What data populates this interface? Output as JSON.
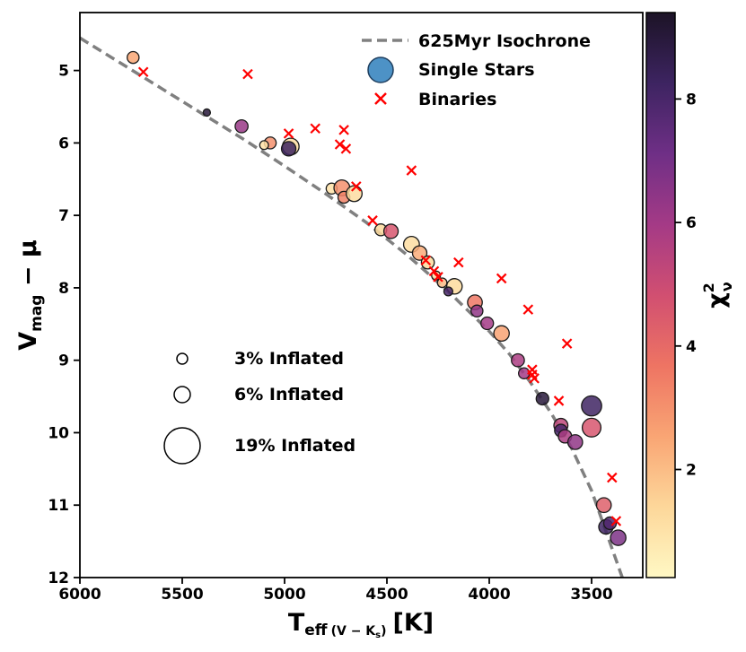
{
  "chart_data": {
    "type": "scatter",
    "xlabel": {
      "main": "T",
      "sub1": "eff",
      "sub2": "(V − K",
      "sub3": "s",
      "sub4": ")",
      "unit": "[K]"
    },
    "ylabel": {
      "main": "V",
      "sub": "mag",
      "rest": " − μ"
    },
    "xlim": [
      6000,
      3250
    ],
    "ylim": [
      12,
      4.2
    ],
    "x_ticks": [
      6000,
      5500,
      5000,
      4500,
      4000,
      3500
    ],
    "y_ticks": [
      5,
      6,
      7,
      8,
      9,
      10,
      11,
      12
    ],
    "colorbar": {
      "label": "χ",
      "label_sup": "2",
      "label_sub": "ν",
      "range": [
        0.25,
        9.4
      ],
      "ticks": [
        2,
        4,
        6,
        8
      ],
      "colormap": "magma_r-like",
      "colors": [
        "#fff8c4",
        "#fdd79a",
        "#f9a574",
        "#ee7463",
        "#d14f71",
        "#a43a86",
        "#6f2f86",
        "#3d2461",
        "#1c1326"
      ]
    },
    "legend": {
      "position": "top-right",
      "items": [
        {
          "label": "625Myr Isochrone",
          "kind": "dashed-line",
          "color": "#808080"
        },
        {
          "label": "Single Stars",
          "kind": "circle",
          "color": "#4d92c6"
        },
        {
          "label": "Binaries",
          "kind": "cross",
          "color": "#ff0000"
        }
      ]
    },
    "size_legend": [
      {
        "label": "3% Inflated",
        "inflation": 3
      },
      {
        "label": "6% Inflated",
        "inflation": 6
      },
      {
        "label": "19% Inflated",
        "inflation": 19
      }
    ],
    "isochrone": {
      "name": "625Myr Isochrone",
      "x": [
        6000,
        5800,
        5600,
        5400,
        5200,
        5000,
        4800,
        4600,
        4400,
        4200,
        4000,
        3900,
        3800,
        3700,
        3600,
        3500,
        3400,
        3350
      ],
      "y": [
        4.55,
        4.9,
        5.25,
        5.6,
        5.95,
        6.32,
        6.7,
        7.1,
        7.55,
        8.05,
        8.6,
        8.92,
        9.3,
        9.72,
        10.2,
        10.8,
        11.6,
        12.0
      ]
    },
    "single_stars": [
      {
        "teff": 5740,
        "v": 4.82,
        "chi2": 2.5,
        "inflation": 2.6
      },
      {
        "teff": 5380,
        "v": 5.58,
        "chi2": 9.0,
        "inflation": 0.5
      },
      {
        "teff": 5210,
        "v": 5.77,
        "chi2": 6.2,
        "inflation": 3.3
      },
      {
        "teff": 5070,
        "v": 6.0,
        "chi2": 3.0,
        "inflation": 2.6
      },
      {
        "teff": 5100,
        "v": 6.03,
        "chi2": 1.0,
        "inflation": 1.0
      },
      {
        "teff": 4970,
        "v": 6.05,
        "chi2": 1.2,
        "inflation": 6.5
      },
      {
        "teff": 4980,
        "v": 6.08,
        "chi2": 8.3,
        "inflation": 4.3
      },
      {
        "teff": 4770,
        "v": 6.63,
        "chi2": 1.0,
        "inflation": 2.0
      },
      {
        "teff": 4720,
        "v": 6.62,
        "chi2": 3.0,
        "inflation": 5.6
      },
      {
        "teff": 4710,
        "v": 6.75,
        "chi2": 3.3,
        "inflation": 2.6
      },
      {
        "teff": 4660,
        "v": 6.7,
        "chi2": 1.2,
        "inflation": 5.6
      },
      {
        "teff": 4530,
        "v": 7.2,
        "chi2": 1.3,
        "inflation": 2.5
      },
      {
        "teff": 4480,
        "v": 7.22,
        "chi2": 4.6,
        "inflation": 4.3
      },
      {
        "teff": 4380,
        "v": 7.4,
        "chi2": 1.2,
        "inflation": 5.6
      },
      {
        "teff": 4340,
        "v": 7.52,
        "chi2": 2.4,
        "inflation": 4.3
      },
      {
        "teff": 4300,
        "v": 7.65,
        "chi2": 1.3,
        "inflation": 3.3
      },
      {
        "teff": 4260,
        "v": 7.83,
        "chi2": 0.9,
        "inflation": 1.0
      },
      {
        "teff": 4230,
        "v": 7.93,
        "chi2": 2.0,
        "inflation": 1.3
      },
      {
        "teff": 4170,
        "v": 7.98,
        "chi2": 1.3,
        "inflation": 5.2
      },
      {
        "teff": 4200,
        "v": 8.05,
        "chi2": 8.0,
        "inflation": 1.0
      },
      {
        "teff": 4070,
        "v": 8.2,
        "chi2": 3.6,
        "inflation": 4.7
      },
      {
        "teff": 4060,
        "v": 8.32,
        "chi2": 6.4,
        "inflation": 2.6
      },
      {
        "teff": 4010,
        "v": 8.49,
        "chi2": 6.0,
        "inflation": 3.0
      },
      {
        "teff": 3940,
        "v": 8.63,
        "chi2": 2.6,
        "inflation": 5.2
      },
      {
        "teff": 3860,
        "v": 9.0,
        "chi2": 5.8,
        "inflation": 3.3
      },
      {
        "teff": 3830,
        "v": 9.18,
        "chi2": 6.0,
        "inflation": 2.0
      },
      {
        "teff": 3740,
        "v": 9.53,
        "chi2": 9.0,
        "inflation": 3.0
      },
      {
        "teff": 3650,
        "v": 9.9,
        "chi2": 5.3,
        "inflation": 4.0
      },
      {
        "teff": 3650,
        "v": 9.97,
        "chi2": 8.0,
        "inflation": 3.0
      },
      {
        "teff": 3630,
        "v": 10.05,
        "chi2": 5.8,
        "inflation": 3.5
      },
      {
        "teff": 3580,
        "v": 10.13,
        "chi2": 6.4,
        "inflation": 4.7
      },
      {
        "teff": 3500,
        "v": 9.63,
        "chi2": 8.2,
        "inflation": 10.2
      },
      {
        "teff": 3500,
        "v": 9.93,
        "chi2": 4.6,
        "inflation": 8.6
      },
      {
        "teff": 3440,
        "v": 11.0,
        "chi2": 4.3,
        "inflation": 4.7
      },
      {
        "teff": 3430,
        "v": 11.3,
        "chi2": 8.2,
        "inflation": 4.3
      },
      {
        "teff": 3410,
        "v": 11.25,
        "chi2": 7.8,
        "inflation": 3.0
      },
      {
        "teff": 3370,
        "v": 11.45,
        "chi2": 6.8,
        "inflation": 5.2
      }
    ],
    "binaries": [
      {
        "teff": 5690,
        "v": 5.02
      },
      {
        "teff": 5180,
        "v": 5.05
      },
      {
        "teff": 4980,
        "v": 5.87
      },
      {
        "teff": 4850,
        "v": 5.8
      },
      {
        "teff": 4710,
        "v": 5.82
      },
      {
        "teff": 4730,
        "v": 6.02
      },
      {
        "teff": 4700,
        "v": 6.08
      },
      {
        "teff": 4650,
        "v": 6.6
      },
      {
        "teff": 4570,
        "v": 7.07
      },
      {
        "teff": 4380,
        "v": 6.38
      },
      {
        "teff": 4310,
        "v": 7.62
      },
      {
        "teff": 4270,
        "v": 7.77
      },
      {
        "teff": 4250,
        "v": 7.85
      },
      {
        "teff": 4150,
        "v": 7.65
      },
      {
        "teff": 3940,
        "v": 7.87
      },
      {
        "teff": 3810,
        "v": 8.3
      },
      {
        "teff": 3790,
        "v": 9.13
      },
      {
        "teff": 3790,
        "v": 9.2
      },
      {
        "teff": 3780,
        "v": 9.25
      },
      {
        "teff": 3620,
        "v": 8.77
      },
      {
        "teff": 3660,
        "v": 9.56
      },
      {
        "teff": 3400,
        "v": 10.62
      },
      {
        "teff": 3380,
        "v": 11.22
      }
    ]
  }
}
